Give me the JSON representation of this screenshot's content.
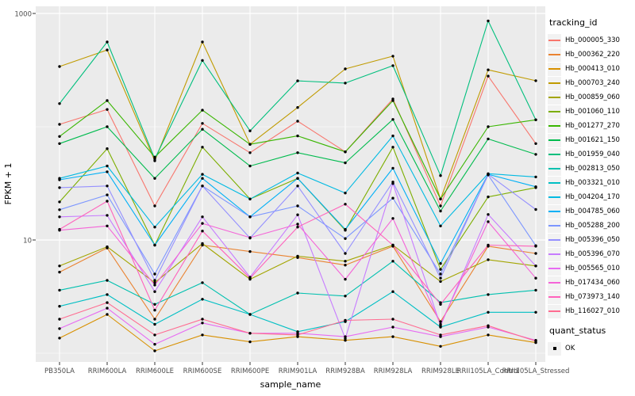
{
  "chart": {
    "y_axis_title": "FPKM + 1",
    "x_axis_title": "sample_name",
    "y_ticks": [
      {
        "label": "1000",
        "value": 1000
      },
      {
        "label": "10",
        "value": 10
      }
    ],
    "style": {
      "panel_bg": "#EBEBEB",
      "grid_color": "#FFFFFF",
      "tick_color": "#333333",
      "axis_text_color": "#4D4D4D",
      "point_color": "#000000",
      "legend_key_bg": "#F2F2F2"
    }
  },
  "chart_data": {
    "type": "line",
    "title": "",
    "xlabel": "sample_name",
    "ylabel": "FPKM + 1",
    "yscale": "log10",
    "ylim": [
      0.85,
      1150
    ],
    "grid": true,
    "legend_position": "right",
    "minor_gridlines": [
      1,
      100
    ],
    "major_gridlines": [
      10,
      1000
    ],
    "categories": [
      "PB350LA",
      "RRIM600LA",
      "RRIM600LE",
      "RRIM600SE",
      "RRIM600PE",
      "RRIM901LA",
      "RRIM928BA",
      "RRIM928LA",
      "RRIM928LE",
      "RRII105LA_Control",
      "RRII105LA_Stressed"
    ],
    "series": [
      {
        "name": "Hb_000005_330",
        "color": "#F8766D",
        "values": [
          105,
          142,
          20,
          107,
          59,
          112,
          60,
          176,
          20,
          280,
          71
        ]
      },
      {
        "name": "Hb_000362_220",
        "color": "#EA8331",
        "values": [
          5.2,
          8.5,
          2.0,
          9.0,
          7.9,
          7.0,
          6.0,
          8.8,
          1.9,
          8.8,
          7.6
        ]
      },
      {
        "name": "Hb_000413_010",
        "color": "#D89000",
        "values": [
          1.36,
          2.2,
          1.05,
          1.45,
          1.26,
          1.4,
          1.3,
          1.4,
          1.15,
          1.45,
          1.24
        ]
      },
      {
        "name": "Hb_000703_240",
        "color": "#C09B00",
        "values": [
          340,
          476,
          50,
          560,
          70,
          148,
          324,
          420,
          23,
          318,
          255
        ]
      },
      {
        "name": "Hb_000859_060",
        "color": "#A3A500",
        "values": [
          5.9,
          8.7,
          4.2,
          9.3,
          4.5,
          7.2,
          6.5,
          9.0,
          4.3,
          6.7,
          5.9
        ]
      },
      {
        "name": "Hb_001060_110",
        "color": "#7CAE00",
        "values": [
          21.7,
          64,
          9.0,
          66,
          23,
          35,
          12.2,
          66,
          5.5,
          24,
          29
        ]
      },
      {
        "name": "Hb_001277_270",
        "color": "#39B600",
        "values": [
          82,
          170,
          54,
          140,
          70,
          83,
          60,
          170,
          23,
          100,
          115
        ]
      },
      {
        "name": "Hb_001621_150",
        "color": "#00BB4E",
        "values": [
          71,
          100,
          35,
          95,
          45,
          59,
          48,
          116,
          18,
          78,
          57
        ]
      },
      {
        "name": "Hb_001959_040",
        "color": "#00BF7D",
        "values": [
          160,
          560,
          52,
          385,
          92,
          254,
          243,
          346,
          37,
          860,
          115
        ]
      },
      {
        "name": "Hb_002813_050",
        "color": "#00C0AF",
        "values": [
          3.6,
          4.4,
          2.7,
          4.2,
          2.2,
          3.4,
          3.2,
          6.5,
          2.8,
          3.3,
          3.6
        ]
      },
      {
        "name": "Hb_003321_010",
        "color": "#00BFC4",
        "values": [
          2.6,
          3.3,
          1.8,
          3.0,
          2.2,
          1.55,
          1.9,
          3.5,
          1.7,
          2.3,
          2.3
        ]
      },
      {
        "name": "Hb_004204_170",
        "color": "#00BAE2",
        "values": [
          35,
          45,
          13,
          38,
          23,
          39,
          26,
          83,
          13.3,
          38.5,
          36
        ]
      },
      {
        "name": "Hb_004785_060",
        "color": "#00B0F6",
        "values": [
          34,
          40,
          9.0,
          35,
          16,
          35,
          12.4,
          43,
          6.2,
          38,
          29.5
        ]
      },
      {
        "name": "Hb_005288_200",
        "color": "#7C96FF",
        "values": [
          18.5,
          25,
          5.0,
          30,
          16,
          20,
          10.3,
          23.4,
          5.0,
          37.5,
          8.9
        ]
      },
      {
        "name": "Hb_005396_050",
        "color": "#9590FF",
        "values": [
          29,
          30,
          4.4,
          30,
          10.4,
          30,
          7.6,
          32.5,
          4.6,
          38,
          18.6
        ]
      },
      {
        "name": "Hb_005396_070",
        "color": "#C77CFF",
        "values": [
          16,
          16.5,
          3.5,
          16,
          4.7,
          16.7,
          1.35,
          31.5,
          1.75,
          16.8,
          5.9
        ]
      },
      {
        "name": "Hb_005565_010",
        "color": "#E76BF3",
        "values": [
          1.65,
          2.5,
          1.2,
          1.85,
          1.5,
          1.5,
          1.4,
          1.7,
          1.4,
          1.7,
          1.3
        ]
      },
      {
        "name": "Hb_017434_060",
        "color": "#F564D8",
        "values": [
          12.2,
          13.3,
          4.0,
          14,
          10.5,
          13.8,
          4.5,
          15.5,
          1.8,
          14.5,
          4.6
        ]
      },
      {
        "name": "Hb_073973_140",
        "color": "#FF62BC",
        "values": [
          12.4,
          22,
          2.4,
          12,
          4.6,
          13,
          20.7,
          9.0,
          2.7,
          9.0,
          8.8
        ]
      },
      {
        "name": "Hb_116027_010",
        "color": "#FF6C91",
        "values": [
          2.0,
          2.8,
          1.45,
          2.0,
          1.5,
          1.45,
          1.95,
          2.0,
          1.45,
          1.75,
          1.28
        ]
      }
    ]
  },
  "legend": {
    "tracking_title": "tracking_id",
    "quant_title": "quant_status",
    "quant_items": [
      {
        "label": "OK"
      }
    ]
  }
}
